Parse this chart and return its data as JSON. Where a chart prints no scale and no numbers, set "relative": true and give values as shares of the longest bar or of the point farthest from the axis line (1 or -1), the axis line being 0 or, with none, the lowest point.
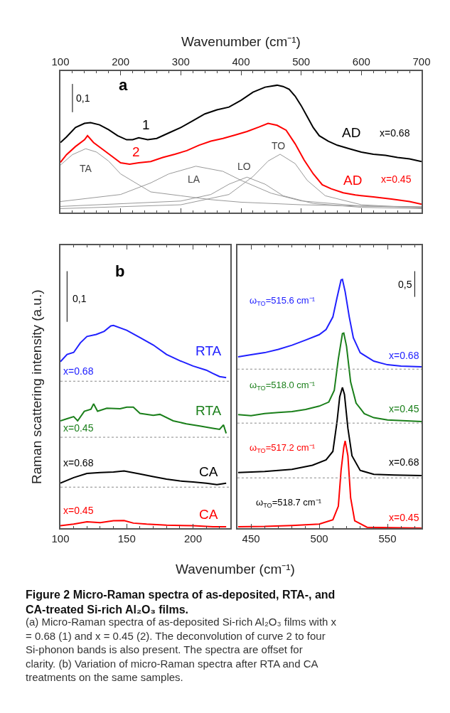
{
  "chart_data": [
    {
      "type": "line",
      "relative": true,
      "tick_labels": "x",
      "xlim": [
        100,
        700
      ],
      "xticks": [
        100,
        200,
        300,
        400,
        500,
        600,
        700
      ],
      "xlabel": "Wavenumber (cm⁻¹)",
      "marker": "none",
      "line_style": "solid",
      "series": [
        {
          "color": "#000000",
          "x": [
            100,
            110,
            125,
            140,
            150,
            165,
            180,
            195,
            210,
            220,
            230,
            245,
            260,
            280,
            300,
            320,
            340,
            360,
            380,
            400,
            420,
            440,
            460,
            470,
            480,
            490,
            500,
            510,
            520,
            530,
            545,
            560,
            580,
            600,
            620,
            640,
            660,
            680,
            700
          ],
          "values": [
            0.544,
            0.587,
            0.661,
            0.693,
            0.699,
            0.682,
            0.644,
            0.597,
            0.566,
            0.566,
            0.581,
            0.566,
            0.576,
            0.619,
            0.661,
            0.714,
            0.767,
            0.799,
            0.82,
            0.873,
            0.936,
            0.975,
            0.99,
            0.98,
            0.958,
            0.905,
            0.831,
            0.746,
            0.661,
            0.597,
            0.555,
            0.523,
            0.496,
            0.47,
            0.453,
            0.445,
            0.428,
            0.417,
            0.396
          ]
        },
        {
          "color": "#ff0000",
          "x": [
            100,
            110,
            125,
            140,
            145,
            155,
            170,
            185,
            200,
            215,
            230,
            250,
            270,
            290,
            310,
            330,
            350,
            370,
            390,
            410,
            430,
            445,
            460,
            475,
            490,
            505,
            520,
            535,
            550,
            570,
            590,
            620,
            650,
            680,
            700
          ],
          "values": [
            0.39,
            0.449,
            0.513,
            0.566,
            0.597,
            0.544,
            0.492,
            0.439,
            0.386,
            0.375,
            0.386,
            0.396,
            0.428,
            0.453,
            0.481,
            0.523,
            0.555,
            0.576,
            0.602,
            0.63,
            0.665,
            0.693,
            0.678,
            0.64,
            0.534,
            0.407,
            0.301,
            0.216,
            0.184,
            0.153,
            0.136,
            0.121,
            0.104,
            0.085,
            0.064
          ]
        },
        {
          "color": "#999999",
          "x": [
            100,
            120,
            142,
            160,
            180,
            200,
            250,
            300,
            350,
            400,
            500,
            600,
            700
          ],
          "values": [
            0.369,
            0.45,
            0.496,
            0.47,
            0.4,
            0.3,
            0.16,
            0.13,
            0.1,
            0.08,
            0.06,
            0.05,
            0.045
          ]
        },
        {
          "color": "#999999",
          "x": [
            100,
            200,
            250,
            280,
            325,
            370,
            400,
            450,
            500,
            600,
            700
          ],
          "values": [
            0.085,
            0.14,
            0.23,
            0.3,
            0.36,
            0.32,
            0.25,
            0.15,
            0.09,
            0.05,
            0.04
          ]
        },
        {
          "color": "#999999",
          "x": [
            100,
            300,
            350,
            380,
            410,
            440,
            470,
            520,
            600,
            700
          ],
          "values": [
            0.047,
            0.089,
            0.14,
            0.22,
            0.275,
            0.22,
            0.13,
            0.07,
            0.04,
            0.03
          ]
        },
        {
          "color": "#999999",
          "x": [
            100,
            300,
            380,
            420,
            445,
            465,
            490,
            510,
            540,
            600,
            700
          ],
          "values": [
            0.03,
            0.06,
            0.14,
            0.28,
            0.4,
            0.453,
            0.38,
            0.25,
            0.13,
            0.06,
            0.035
          ]
        },
        {
          "color": "#000000",
          "x": [
            120,
            120
          ],
          "values": [
            1.0,
            0.78
          ]
        }
      ],
      "annotations": [
        "a",
        "0,1",
        "1",
        "2",
        "AD",
        "x=0.68",
        "AD",
        "x=0.45",
        "TA",
        "LA",
        "LO",
        "TO"
      ]
    },
    {
      "type": "line",
      "relative": true,
      "tick_labels": "x",
      "xlim": [
        100,
        228
      ],
      "xticks": [
        100,
        150,
        200
      ],
      "xlabel": "Wavenumber (cm⁻¹)",
      "ylabel": "Raman scattering intensity (a.u.)",
      "marker": "none",
      "line_style": "solid",
      "series": [
        {
          "color": "#2020ff",
          "x": [
            100,
            105,
            110,
            115,
            120,
            127,
            133,
            138,
            140,
            150,
            160,
            170,
            180,
            190,
            200,
            210,
            215,
            220,
            225
          ],
          "values": [
            0.648,
            0.676,
            0.684,
            0.721,
            0.746,
            0.754,
            0.766,
            0.787,
            0.789,
            0.77,
            0.742,
            0.713,
            0.676,
            0.652,
            0.631,
            0.615,
            0.602,
            0.59,
            0.586
          ]
        },
        {
          "color": "#1a7f1a",
          "x": [
            100,
            105,
            110,
            113,
            118,
            123,
            125,
            128,
            135,
            145,
            150,
            155,
            160,
            170,
            175,
            185,
            195,
            205,
            215,
            220,
            223,
            225
          ],
          "values": [
            0.418,
            0.426,
            0.434,
            0.418,
            0.455,
            0.463,
            0.484,
            0.455,
            0.467,
            0.465,
            0.471,
            0.471,
            0.447,
            0.439,
            0.443,
            0.418,
            0.406,
            0.398,
            0.389,
            0.385,
            0.402,
            0.369
          ]
        },
        {
          "color": "#000000",
          "x": [
            100,
            110,
            120,
            130,
            140,
            148,
            160,
            170,
            180,
            190,
            200,
            210,
            218,
            225
          ],
          "values": [
            0.176,
            0.197,
            0.213,
            0.217,
            0.219,
            0.223,
            0.211,
            0.201,
            0.191,
            0.184,
            0.18,
            0.175,
            0.17,
            0.175
          ]
        },
        {
          "color": "#ff0000",
          "x": [
            100,
            110,
            120,
            130,
            140,
            148,
            155,
            165,
            180,
            200,
            215,
            225
          ],
          "values": [
            0.01,
            0.016,
            0.025,
            0.022,
            0.029,
            0.03,
            0.02,
            0.016,
            0.012,
            0.01,
            0.006,
            0.006
          ]
        },
        {
          "color": "#000000",
          "x": [
            105,
            105
          ],
          "values": [
            1.0,
            0.803
          ]
        }
      ],
      "ref_lines": [
        {
          "axis": "y",
          "value": 0.572,
          "color": "#888888",
          "line_style": "dotted"
        },
        {
          "axis": "y",
          "value": 0.354,
          "color": "#888888",
          "line_style": "dotted"
        },
        {
          "axis": "y",
          "value": 0.16,
          "color": "#888888",
          "line_style": "dotted"
        }
      ],
      "annotations": [
        "b",
        "0,1",
        "RTA",
        "x=0.68",
        "RTA",
        "x=0.45",
        "x=0.68",
        "CA",
        "x=0.45",
        "CA"
      ]
    },
    {
      "type": "line",
      "relative": true,
      "tick_labels": "x",
      "xlim": [
        440,
        575
      ],
      "xticks": [
        450,
        500,
        550
      ],
      "marker": "none",
      "line_style": "solid",
      "title": "Figure 2 Micro-Raman spectra of as-deposited, RTA-, and CA-treated Si-rich Al₂O₃ films.",
      "series": [
        {
          "color": "#2020ff",
          "x": [
            440.5,
            450,
            460,
            470,
            480,
            490,
            500,
            505,
            510,
            513,
            516,
            517,
            519,
            522,
            525,
            530,
            540,
            550,
            560,
            575
          ],
          "values": [
            0.667,
            0.675,
            0.683,
            0.696,
            0.712,
            0.732,
            0.753,
            0.773,
            0.822,
            0.896,
            0.966,
            0.968,
            0.92,
            0.822,
            0.741,
            0.683,
            0.65,
            0.636,
            0.631,
            0.628
          ]
        },
        {
          "color": "#1a7f1a",
          "x": [
            440.5,
            450,
            460,
            470,
            480,
            490,
            500,
            507,
            511,
            514,
            517,
            518,
            520,
            523,
            527,
            533,
            540,
            550,
            575
          ],
          "values": [
            0.442,
            0.438,
            0.446,
            0.45,
            0.454,
            0.462,
            0.475,
            0.491,
            0.536,
            0.659,
            0.757,
            0.759,
            0.708,
            0.569,
            0.487,
            0.446,
            0.43,
            0.421,
            0.415
          ]
        },
        {
          "color": "#000000",
          "x": [
            440.5,
            460,
            480,
            495,
            505,
            510,
            513,
            515,
            517,
            518.5,
            521,
            524,
            530,
            540,
            555,
            575
          ],
          "values": [
            0.217,
            0.221,
            0.229,
            0.245,
            0.266,
            0.299,
            0.413,
            0.511,
            0.548,
            0.52,
            0.389,
            0.282,
            0.225,
            0.21,
            0.207,
            0.205
          ]
        },
        {
          "color": "#ff0000",
          "x": [
            440.5,
            460,
            480,
            500,
            510,
            514,
            516,
            518,
            519,
            521,
            523,
            526,
            535,
            575
          ],
          "values": [
            0.006,
            0.007,
            0.011,
            0.016,
            0.033,
            0.086,
            0.225,
            0.315,
            0.34,
            0.282,
            0.119,
            0.029,
            0.004,
            0
          ]
        },
        {
          "color": "#000000",
          "x": [
            570,
            570
          ],
          "values": [
            1.0,
            0.9
          ]
        }
      ],
      "ref_lines": [
        {
          "axis": "y",
          "value": 0.619,
          "color": "#888888",
          "line_style": "dotted"
        },
        {
          "axis": "y",
          "value": 0.409,
          "color": "#888888",
          "line_style": "dotted"
        },
        {
          "axis": "y",
          "value": 0.196,
          "color": "#888888",
          "line_style": "dotted"
        }
      ],
      "annotations": [
        "0,5",
        "ω$_{TO}$=515.6 cm⁻¹",
        "ω$_{TO}$=518.0 cm⁻¹",
        "ω$_{TO}$=517.2 cm⁻¹",
        "ω$_{TO}$=518.7 cm⁻¹",
        "x=0.68",
        "x=0.45",
        "x=0.68",
        "x=0.45",
        "(a) Micro-Raman spectra of as-deposited Si-rich Al₂O₃ films with x = 0.68 (1) and x = 0.45 (2). The deconvolution of curve 2 to four Si-phonon bands is also present. The spectra are offset for clarity. (b) Variation of micro-Raman spectra after RTA and CA treatments on the same samples."
      ]
    }
  ]
}
